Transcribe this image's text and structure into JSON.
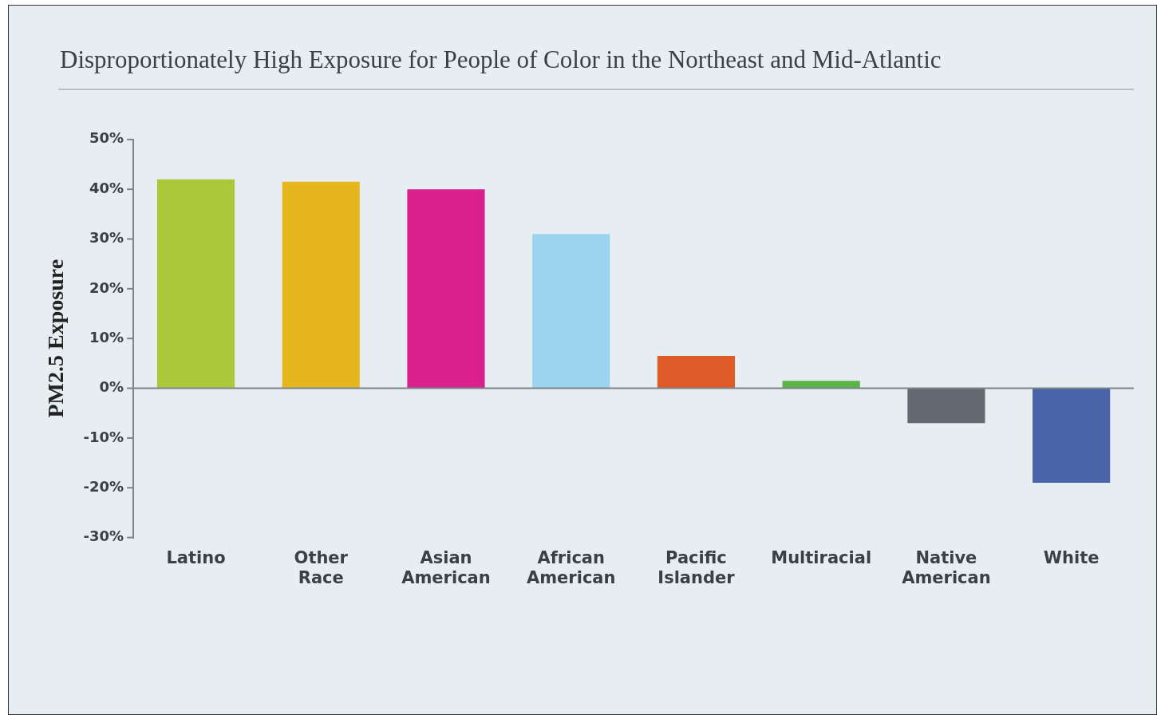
{
  "chart_data": {
    "type": "bar",
    "title": "Disproportionately High Exposure for People of Color in the Northeast and Mid-Atlantic",
    "ylabel": "PM2.5 Exposure",
    "categories": [
      "Latino",
      "Other Race",
      "Asian American",
      "African American",
      "Pacific Islander",
      "Multiracial",
      "Native American",
      "White"
    ],
    "values": [
      42,
      41.5,
      40,
      31,
      6.5,
      1.5,
      -7,
      -19
    ],
    "colors": [
      "#a9c83a",
      "#e6b61e",
      "#d9208c",
      "#9cd3ee",
      "#de5a27",
      "#5db446",
      "#626970",
      "#4b65ab"
    ],
    "ylim": [
      -30,
      50
    ],
    "yticks": [
      {
        "value": -30,
        "label": "-30%"
      },
      {
        "value": -20,
        "label": "-20%"
      },
      {
        "value": -10,
        "label": "-10%"
      },
      {
        "value": 0,
        "label": "0%"
      },
      {
        "value": 10,
        "label": "10%"
      },
      {
        "value": 20,
        "label": "20%"
      },
      {
        "value": 30,
        "label": "30%"
      },
      {
        "value": 40,
        "label": "40%"
      },
      {
        "value": 50,
        "label": "50%"
      }
    ],
    "ref_lines": [
      {
        "axis": "y",
        "value": 0,
        "color": "#7d858a"
      }
    ],
    "grid": false,
    "legend": false
  }
}
